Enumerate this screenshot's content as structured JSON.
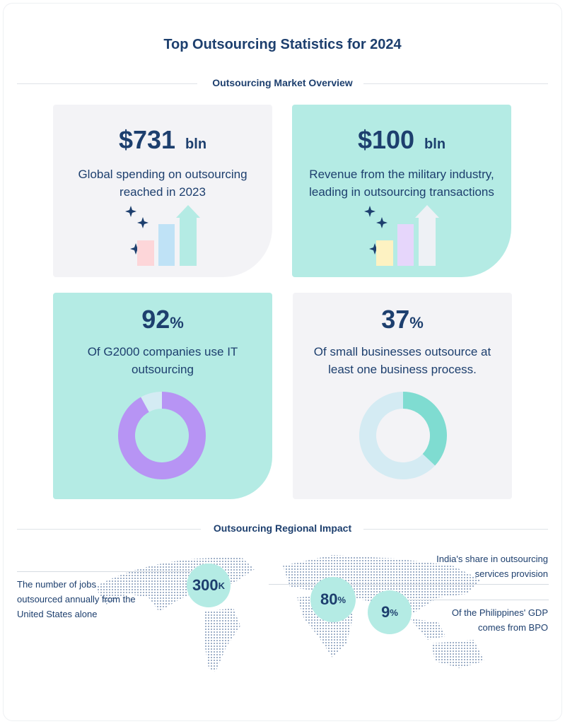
{
  "title": "Top Outsourcing Statistics for 2024",
  "section1": "Outsourcing Market Overview",
  "cards": [
    {
      "value": "$731",
      "unit": "bln",
      "desc_line1": "Global spending on outsourcing",
      "desc_line2": "reached in 2023",
      "icon": "bar-growth-sparkle-icon"
    },
    {
      "value": "$100",
      "unit": "bln",
      "desc_line1": "Revenue from the military industry,",
      "desc_line2": "leading in outsourcing transactions",
      "icon": "bar-growth-sparkle-icon"
    },
    {
      "value": "92",
      "unit": "%",
      "desc_line1": "Of G2000 companies use IT",
      "desc_line2": "outsourcing",
      "percent": 92,
      "color": "#b794f4"
    },
    {
      "value": "37",
      "unit": "%",
      "desc_line1": "Of small businesses outsource at",
      "desc_line2": "least one business process.",
      "percent": 37,
      "color": "#7fdcd1"
    }
  ],
  "section2": "Outsourcing Regional Impact",
  "regional": [
    {
      "value": "300",
      "unit": "K",
      "desc_line1": "The number of jobs",
      "desc_line2": "outsourced annually from the",
      "desc_line3": "United States alone"
    },
    {
      "value": "80",
      "unit": "%",
      "desc_line1": "India's share in outsourcing",
      "desc_line2": "services provision"
    },
    {
      "value": "9",
      "unit": "%",
      "desc_line1": "Of the Philippines' GDP",
      "desc_line2": "comes from BPO"
    }
  ],
  "colors": {
    "text": "#1d3f6e",
    "teal": "#b4ebe4",
    "gray": "#f3f3f6"
  }
}
